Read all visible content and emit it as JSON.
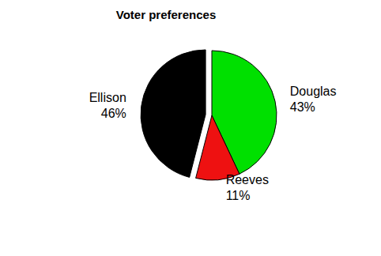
{
  "chart_data": {
    "type": "pie",
    "title": "Voter preferences",
    "categories": [
      "Douglas",
      "Reeves",
      "Ellison"
    ],
    "values": [
      43,
      11,
      46
    ],
    "value_labels": [
      "43%",
      "11%",
      "46%"
    ],
    "colors": [
      "#00e000",
      "#ee1111",
      "#000000"
    ],
    "data_labels": true
  }
}
